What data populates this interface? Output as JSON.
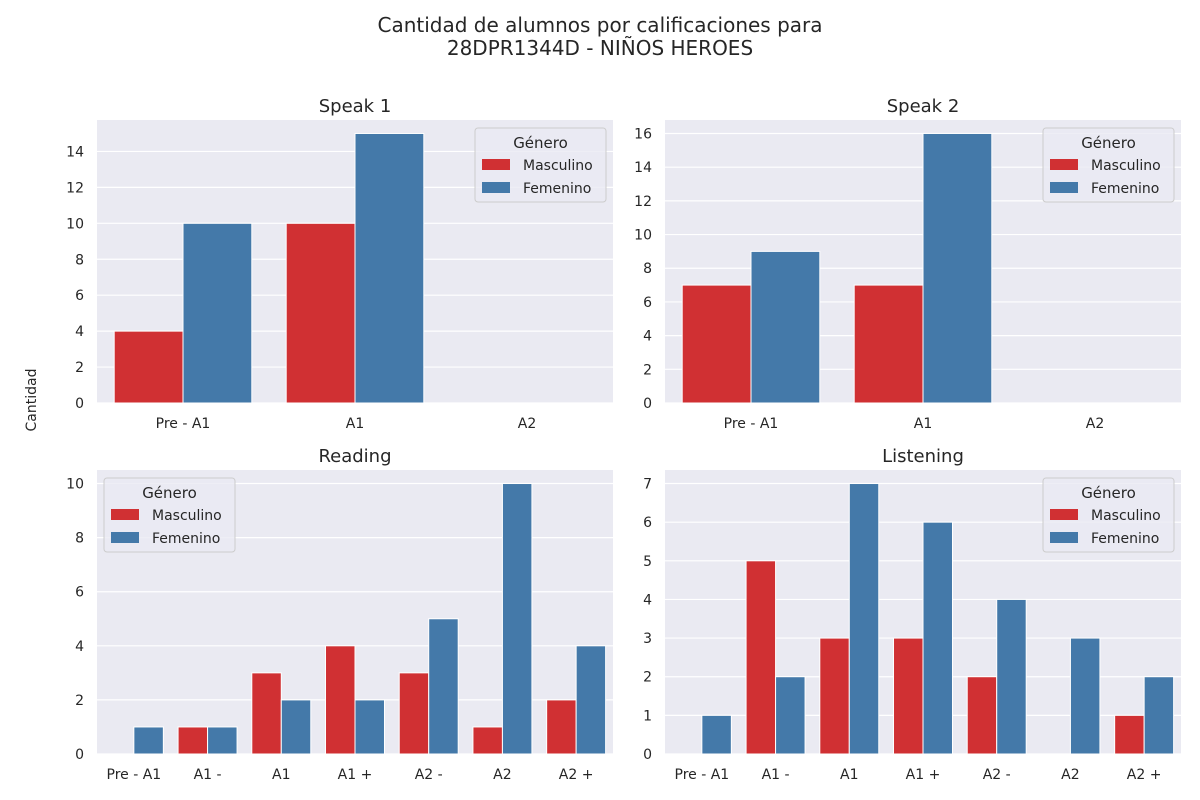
{
  "figure": {
    "suptitle_line1": "Cantidad de alumnos por calificaciones para",
    "suptitle_line2": "28DPR1344D - NIÑOS HEROES",
    "ylabel": "Cantidad"
  },
  "colors": {
    "masculino": "#d03033",
    "femenino": "#4479a9",
    "plot_bg": "#eaeaf2",
    "grid": "#ffffff"
  },
  "legend": {
    "title": "Género",
    "entries": [
      "Masculino",
      "Femenino"
    ]
  },
  "chart_data": [
    {
      "type": "bar",
      "title": "Speak 1",
      "categories": [
        "Pre - A1",
        "A1",
        "A2"
      ],
      "series": [
        {
          "name": "Masculino",
          "values": [
            4,
            10,
            0
          ]
        },
        {
          "name": "Femenino",
          "values": [
            10,
            15,
            0
          ]
        }
      ],
      "ylim": [
        0,
        15.75
      ],
      "yticks": [
        0,
        2,
        4,
        6,
        8,
        10,
        12,
        14
      ],
      "legend_position": "upper-right",
      "grid": true
    },
    {
      "type": "bar",
      "title": "Speak 2",
      "categories": [
        "Pre - A1",
        "A1",
        "A2"
      ],
      "series": [
        {
          "name": "Masculino",
          "values": [
            7,
            7,
            0
          ]
        },
        {
          "name": "Femenino",
          "values": [
            9,
            16,
            0
          ]
        }
      ],
      "ylim": [
        0,
        16.8
      ],
      "yticks": [
        0,
        2,
        4,
        6,
        8,
        10,
        12,
        14,
        16
      ],
      "legend_position": "upper-right",
      "grid": true
    },
    {
      "type": "bar",
      "title": "Reading",
      "categories": [
        "Pre - A1",
        "A1 -",
        "A1",
        "A1 +",
        "A2 -",
        "A2",
        "A2 +"
      ],
      "series": [
        {
          "name": "Masculino",
          "values": [
            0,
            1,
            3,
            4,
            3,
            1,
            2
          ]
        },
        {
          "name": "Femenino",
          "values": [
            1,
            1,
            2,
            2,
            5,
            10,
            4
          ]
        }
      ],
      "ylim": [
        0,
        10.5
      ],
      "yticks": [
        0,
        2,
        4,
        6,
        8,
        10
      ],
      "legend_position": "upper-left",
      "grid": true
    },
    {
      "type": "bar",
      "title": "Listening",
      "categories": [
        "Pre - A1",
        "A1 -",
        "A1",
        "A1 +",
        "A2 -",
        "A2",
        "A2 +"
      ],
      "series": [
        {
          "name": "Masculino",
          "values": [
            0,
            5,
            3,
            3,
            2,
            0,
            1
          ]
        },
        {
          "name": "Femenino",
          "values": [
            1,
            2,
            7,
            6,
            4,
            3,
            2
          ]
        }
      ],
      "ylim": [
        0,
        7.35
      ],
      "yticks": [
        0,
        1,
        2,
        3,
        4,
        5,
        6,
        7
      ],
      "legend_position": "upper-right",
      "grid": true
    }
  ]
}
